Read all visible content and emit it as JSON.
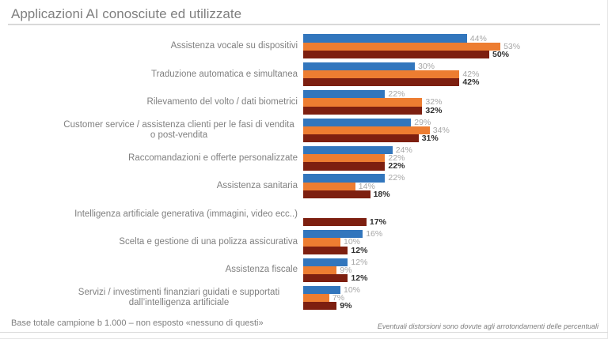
{
  "title": "Applicazioni AI conosciute ed utilizzate",
  "footer": {
    "left": "Base totale campione b 1.000 – non esposto «nessuno di questi»",
    "right": "Eventuali distorsioni sono dovute agli arrotondamenti delle percentuali"
  },
  "colors": {
    "series_blue": "#3276bd",
    "series_orange": "#ed7d31",
    "series_dark_red": "#7d1f10",
    "value_label_muted": "#a6a6a6",
    "value_label_bold": "#2f2f2f",
    "title_gray": "#7f7f7f",
    "rule_gray": "#d9d9d9"
  },
  "chart_data": {
    "type": "bar",
    "orientation": "horizontal",
    "title": "Applicazioni AI conosciute ed utilizzate",
    "xlabel": "",
    "ylabel": "",
    "xlim": [
      0,
      60
    ],
    "gridlines": false,
    "legend": "none",
    "value_suffix": "%",
    "categories": [
      "Assistenza vocale su dispositivi",
      "Traduzione automatica e simultanea",
      "Rilevamento del volto / dati biometrici",
      "Customer service / assistenza clienti per le fasi di vendita o post-vendita",
      "Raccomandazioni e offerte personalizzate",
      "Assistenza sanitaria",
      "Intelligenza artificiale generativa (immagini, video ecc..)",
      "Scelta e gestione di una polizza assicurativa",
      "Assistenza fiscale",
      "Servizi / investimenti finanziari guidati e supportati dall’intelligenza artificiale"
    ],
    "series": [
      {
        "name": "series-blue",
        "color": "#3276bd",
        "values": [
          44,
          30,
          22,
          29,
          24,
          22,
          null,
          16,
          12,
          10
        ]
      },
      {
        "name": "series-orange",
        "color": "#ed7d31",
        "values": [
          53,
          42,
          32,
          34,
          22,
          14,
          null,
          10,
          9,
          7
        ]
      },
      {
        "name": "series-dark-red",
        "color": "#7d1f10",
        "values": [
          50,
          42,
          32,
          31,
          22,
          18,
          17,
          12,
          12,
          9
        ]
      }
    ]
  }
}
